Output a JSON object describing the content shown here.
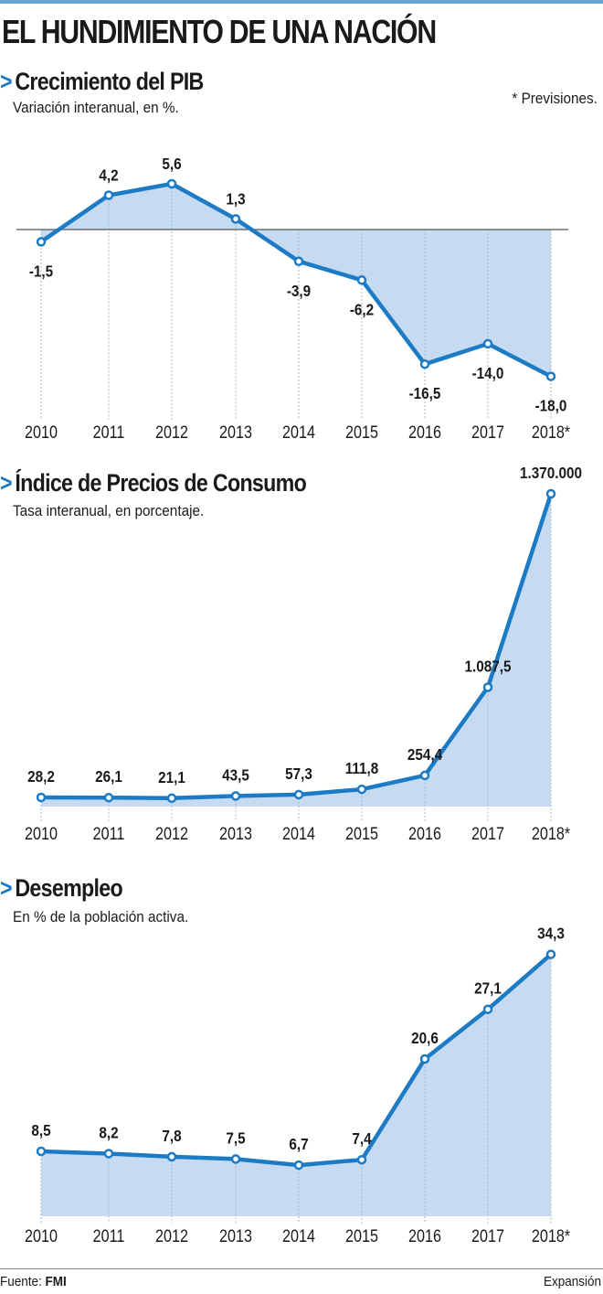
{
  "title": "EL HUNDIMIENTO DE UNA NACIÓN",
  "note": "* Previsiones.",
  "footer": {
    "source_label": "Fuente:",
    "source": "FMI",
    "brand": "Expansión"
  },
  "colors": {
    "line": "#1c7bc4",
    "area": "#c6dbf1",
    "accent": "#1c7bc4"
  },
  "chart_data": [
    {
      "type": "area",
      "title": "Crecimiento del PIB",
      "subtitle": "Variación interanual, en %.",
      "x": [
        "2010",
        "2011",
        "2012",
        "2013",
        "2014",
        "2015",
        "2016",
        "2017",
        "2018*"
      ],
      "values": [
        -1.5,
        4.2,
        5.6,
        1.3,
        -3.9,
        -6.2,
        -16.5,
        -14.0,
        -18.0
      ],
      "labels": [
        "-1,5",
        "4,2",
        "5,6",
        "1,3",
        "-3,9",
        "-6,2",
        "-16,5",
        "-14,0",
        "-18,0"
      ],
      "ylim": [
        -20,
        8
      ],
      "baseline": 0
    },
    {
      "type": "area",
      "title": "Índice de Precios de Consumo",
      "subtitle": "Tasa interanual, en porcentaje.",
      "x": [
        "2010",
        "2011",
        "2012",
        "2013",
        "2014",
        "2015",
        "2016",
        "2017",
        "2018*"
      ],
      "values": [
        28.2,
        26.1,
        21.1,
        43.5,
        57.3,
        111.8,
        254.4,
        1087.5,
        1370000
      ],
      "labels": [
        "28,2",
        "26,1",
        "21,1",
        "43,5",
        "57,3",
        "111,8",
        "254,4",
        "1.087,5",
        "1.370.000"
      ],
      "scale": "non-linear"
    },
    {
      "type": "area",
      "title": "Desempleo",
      "subtitle": "En % de la población activa.",
      "x": [
        "2010",
        "2011",
        "2012",
        "2013",
        "2014",
        "2015",
        "2016",
        "2017",
        "2018*"
      ],
      "values": [
        8.5,
        8.2,
        7.8,
        7.5,
        6.7,
        7.4,
        20.6,
        27.1,
        34.3
      ],
      "labels": [
        "8,5",
        "8,2",
        "7,8",
        "7,5",
        "6,7",
        "7,4",
        "20,6",
        "27,1",
        "34,3"
      ],
      "ylim": [
        0,
        35
      ]
    }
  ]
}
